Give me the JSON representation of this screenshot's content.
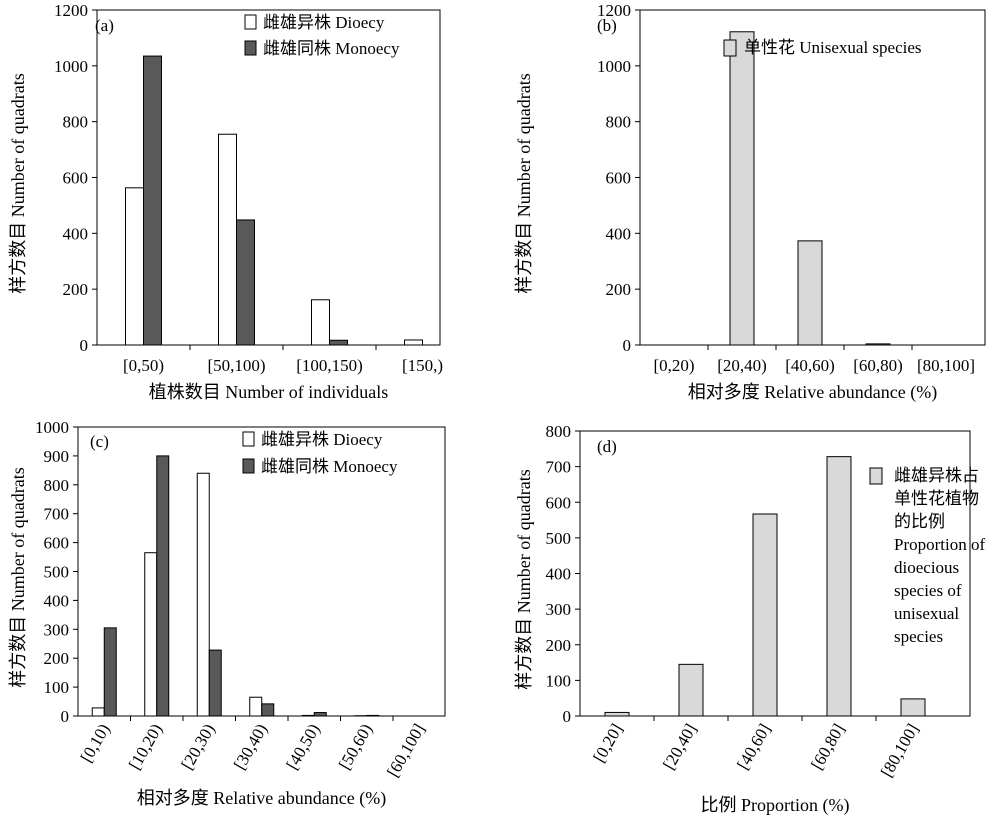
{
  "chart_data": [
    {
      "type": "bar",
      "panel_label": "(a)",
      "categories": [
        "[0,50)",
        "[50,100)",
        "[100,150)",
        "[150,)"
      ],
      "series": [
        {
          "name": "雌雄异株 Dioecy",
          "color": "#ffffff",
          "values": [
            563,
            755,
            162,
            18
          ]
        },
        {
          "name": "雌雄同株 Monoecy",
          "color": "#595959",
          "values": [
            1035,
            448,
            17,
            0
          ]
        }
      ],
      "xlabel": "植株数目 Number of individuals",
      "ylabel": "样方数目 Number of quadrats",
      "ylim": [
        0,
        1200
      ],
      "yticks": [
        0,
        200,
        400,
        600,
        800,
        1000,
        1200
      ],
      "legend": "top-right",
      "grid": false
    },
    {
      "type": "bar",
      "panel_label": "(b)",
      "categories": [
        "[0,20)",
        "[20,40)",
        "[40,60)",
        "[60,80)",
        "[80,100]"
      ],
      "series": [
        {
          "name": "单性花 Unisexual species",
          "color": "#d9d9d9",
          "values": [
            0,
            1122,
            373,
            4,
            0
          ]
        }
      ],
      "xlabel": "相对多度 Relative abundance (%)",
      "ylabel": "样方数目 Number of quadrats",
      "ylim": [
        0,
        1200
      ],
      "yticks": [
        0,
        200,
        400,
        600,
        800,
        1000,
        1200
      ],
      "legend": "top-right",
      "grid": false
    },
    {
      "type": "bar",
      "panel_label": "(c)",
      "categories": [
        "[0,10)",
        "[10,20)",
        "[20,30)",
        "[30,40)",
        "[40,50)",
        "[50,60)",
        "[60,100]"
      ],
      "series": [
        {
          "name": "雌雄异株 Dioecy",
          "color": "#ffffff",
          "values": [
            28,
            565,
            840,
            65,
            2,
            1,
            0
          ]
        },
        {
          "name": "雌雄同株 Monoecy",
          "color": "#595959",
          "values": [
            305,
            900,
            228,
            42,
            12,
            2,
            0
          ]
        }
      ],
      "xlabel": "相对多度 Relative abundance (%)",
      "ylabel": "样方数目 Number of quadrats",
      "ylim": [
        0,
        1000
      ],
      "yticks": [
        0,
        100,
        200,
        300,
        400,
        500,
        600,
        700,
        800,
        900,
        1000
      ],
      "legend": "top-right",
      "grid": false
    },
    {
      "type": "bar",
      "panel_label": "(d)",
      "categories": [
        "[0,20]",
        "[20,40]",
        "[40,60]",
        "[60,80]",
        "[80,100]"
      ],
      "series": [
        {
          "name": "雌雄异株占单性花植物的比例 Proportion of dioecious species of unisexual species",
          "color": "#d9d9d9",
          "values": [
            10,
            145,
            567,
            728,
            48
          ]
        }
      ],
      "legend_lines": [
        "雌雄异株占",
        "单性花植物",
        "的比例",
        "Proportion of",
        "dioecious",
        "species of",
        "unisexual",
        "species"
      ],
      "xlabel": "比例 Proportion (%)",
      "ylabel": "样方数目 Number of quadrats",
      "ylim": [
        0,
        800
      ],
      "yticks": [
        0,
        100,
        200,
        300,
        400,
        500,
        600,
        700,
        800
      ],
      "legend": "right",
      "grid": false
    }
  ]
}
